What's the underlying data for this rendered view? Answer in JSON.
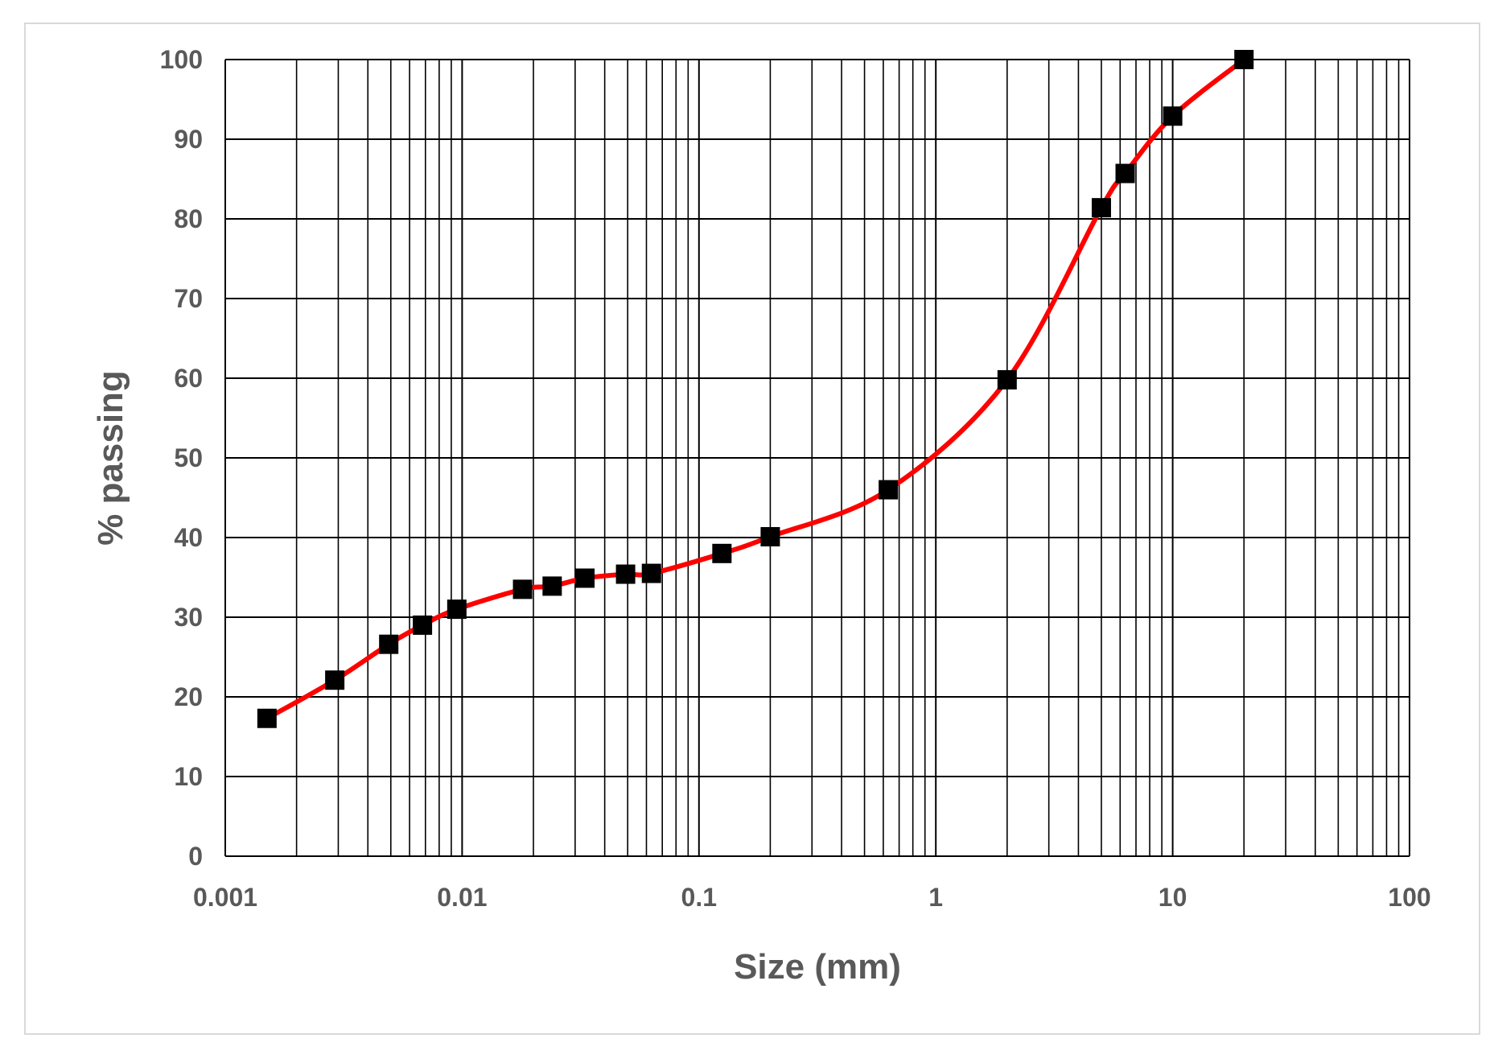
{
  "chart_data": {
    "type": "line",
    "title": "",
    "xlabel": "Size (mm)",
    "ylabel": "% passing",
    "xscale": "log",
    "xlim": [
      0.001,
      100
    ],
    "ylim": [
      0,
      100
    ],
    "grid": true,
    "legend": "none",
    "x_ticks": [
      "0.001",
      "0.01",
      "0.1",
      "1",
      "10",
      "100"
    ],
    "y_ticks": [
      "0",
      "10",
      "20",
      "30",
      "40",
      "50",
      "60",
      "70",
      "80",
      "90",
      "100"
    ],
    "series": [
      {
        "marker": "square",
        "line_color": "#ff0000",
        "marker_color": "#000000",
        "x": [
          0.0015,
          0.0029,
          0.0049,
          0.0068,
          0.0095,
          0.018,
          0.024,
          0.033,
          0.049,
          0.063,
          0.125,
          0.2,
          0.63,
          2,
          5,
          6.3,
          10,
          20
        ],
        "y": [
          17.3,
          22.1,
          26.6,
          29.0,
          31.0,
          33.5,
          33.9,
          34.9,
          35.4,
          35.5,
          38.0,
          40.1,
          46.0,
          59.8,
          81.4,
          85.7,
          92.9,
          100
        ]
      }
    ]
  }
}
